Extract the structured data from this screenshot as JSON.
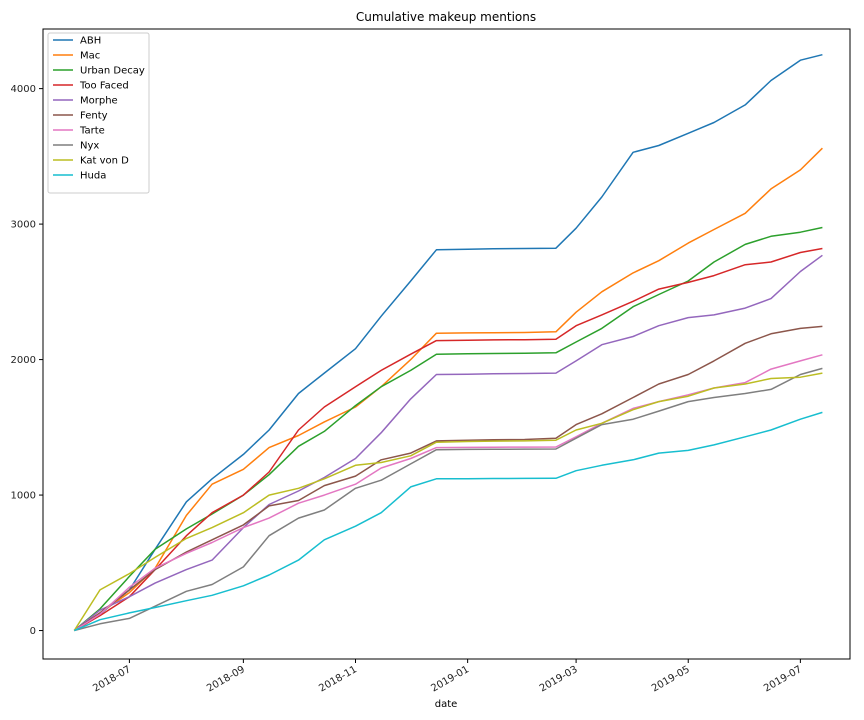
{
  "chart_data": {
    "type": "line",
    "title": "Cumulative makeup mentions",
    "xlabel": "date",
    "ylabel": "",
    "x_type": "date",
    "xlim": [
      "2018-05-15",
      "2019-07-28"
    ],
    "ylim": [
      -210,
      4440
    ],
    "x_ticks": [
      "2018-07-01",
      "2018-09-01",
      "2018-11-01",
      "2019-01-01",
      "2019-03-01",
      "2019-05-01",
      "2019-07-01"
    ],
    "x_tick_labels": [
      "2018-07",
      "2018-09",
      "2018-11",
      "2019-01",
      "2019-03",
      "2019-05",
      "2019-07"
    ],
    "y_ticks": [
      0,
      1000,
      2000,
      3000,
      4000
    ],
    "y_tick_labels": [
      "0",
      "1000",
      "2000",
      "3000",
      "4000"
    ],
    "grid": false,
    "legend_position": "top-left",
    "x": [
      "2018-06-01",
      "2018-06-15",
      "2018-07-01",
      "2018-07-15",
      "2018-08-01",
      "2018-08-15",
      "2018-09-01",
      "2018-09-15",
      "2018-10-01",
      "2018-10-15",
      "2018-11-01",
      "2018-11-15",
      "2018-12-01",
      "2018-12-15",
      "2019-01-01",
      "2019-01-15",
      "2019-02-01",
      "2019-02-18",
      "2019-03-01",
      "2019-03-15",
      "2019-04-01",
      "2019-04-15",
      "2019-05-01",
      "2019-05-15",
      "2019-06-01",
      "2019-06-15",
      "2019-07-01",
      "2019-07-13"
    ],
    "series": [
      {
        "name": "ABH",
        "color": "#1f77b4",
        "values": [
          0,
          120,
          300,
          600,
          950,
          1120,
          1300,
          1480,
          1750,
          1900,
          2080,
          2320,
          2580,
          2810,
          2815,
          2818,
          2820,
          2822,
          2970,
          3200,
          3530,
          3580,
          3670,
          3750,
          3880,
          4060,
          4210,
          4250
        ]
      },
      {
        "name": "Mac",
        "color": "#ff7f0e",
        "values": [
          0,
          130,
          280,
          460,
          850,
          1080,
          1190,
          1350,
          1440,
          1540,
          1650,
          1800,
          2000,
          2195,
          2197,
          2198,
          2200,
          2205,
          2350,
          2500,
          2640,
          2730,
          2860,
          2960,
          3080,
          3260,
          3400,
          3560
        ]
      },
      {
        "name": "Urban Decay",
        "color": "#2ca02c",
        "values": [
          0,
          160,
          400,
          600,
          750,
          860,
          1000,
          1150,
          1360,
          1470,
          1660,
          1800,
          1920,
          2040,
          2043,
          2045,
          2046,
          2050,
          2130,
          2230,
          2390,
          2480,
          2580,
          2720,
          2850,
          2910,
          2940,
          2975
        ]
      },
      {
        "name": "Too Faced",
        "color": "#d62728",
        "values": [
          0,
          110,
          250,
          450,
          700,
          870,
          1000,
          1170,
          1480,
          1650,
          1800,
          1920,
          2040,
          2140,
          2143,
          2145,
          2147,
          2150,
          2250,
          2330,
          2430,
          2520,
          2570,
          2620,
          2700,
          2720,
          2790,
          2820
        ]
      },
      {
        "name": "Morphe",
        "color": "#9467bd",
        "values": [
          0,
          150,
          250,
          350,
          450,
          520,
          760,
          930,
          1030,
          1130,
          1270,
          1460,
          1710,
          1890,
          1892,
          1895,
          1897,
          1900,
          1990,
          2110,
          2170,
          2250,
          2310,
          2330,
          2380,
          2450,
          2650,
          2770
        ]
      },
      {
        "name": "Fenty",
        "color": "#8c564b",
        "values": [
          0,
          130,
          300,
          450,
          580,
          670,
          780,
          920,
          960,
          1070,
          1140,
          1260,
          1310,
          1400,
          1405,
          1408,
          1410,
          1420,
          1520,
          1600,
          1720,
          1820,
          1890,
          1990,
          2120,
          2190,
          2230,
          2245
        ]
      },
      {
        "name": "Tarte",
        "color": "#e377c2",
        "values": [
          0,
          120,
          320,
          460,
          570,
          650,
          760,
          830,
          940,
          1000,
          1080,
          1200,
          1270,
          1350,
          1352,
          1353,
          1354,
          1355,
          1430,
          1530,
          1640,
          1690,
          1740,
          1790,
          1830,
          1930,
          1990,
          2035
        ]
      },
      {
        "name": "Nyx",
        "color": "#7f7f7f",
        "values": [
          0,
          50,
          90,
          180,
          290,
          340,
          470,
          700,
          830,
          890,
          1050,
          1110,
          1230,
          1335,
          1337,
          1338,
          1339,
          1340,
          1420,
          1520,
          1560,
          1620,
          1690,
          1720,
          1750,
          1780,
          1890,
          1935
        ]
      },
      {
        "name": "Kat von D",
        "color": "#bcbd22",
        "values": [
          0,
          300,
          420,
          540,
          680,
          760,
          870,
          1000,
          1050,
          1120,
          1220,
          1240,
          1290,
          1390,
          1395,
          1398,
          1400,
          1405,
          1480,
          1530,
          1630,
          1690,
          1730,
          1790,
          1820,
          1860,
          1870,
          1900
        ]
      },
      {
        "name": "Huda",
        "color": "#17becf",
        "values": [
          0,
          80,
          130,
          170,
          220,
          260,
          330,
          410,
          520,
          670,
          770,
          870,
          1060,
          1120,
          1121,
          1122,
          1123,
          1124,
          1180,
          1220,
          1260,
          1310,
          1330,
          1370,
          1430,
          1480,
          1560,
          1610
        ]
      }
    ]
  }
}
